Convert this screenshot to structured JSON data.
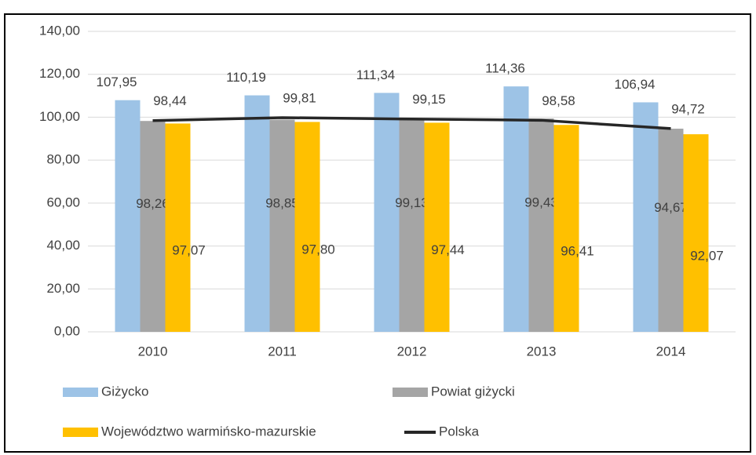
{
  "chart_data": {
    "type": "bar",
    "categories": [
      "2010",
      "2011",
      "2012",
      "2013",
      "2014"
    ],
    "series": [
      {
        "name": "Giżycko",
        "color": "#9dc3e6",
        "type": "bar",
        "values": [
          107.95,
          110.19,
          111.34,
          114.36,
          106.94
        ],
        "value_labels": [
          "107,95",
          "110,19",
          "111,34",
          "114,36",
          "106,94"
        ]
      },
      {
        "name": "Powiat giżycki",
        "color": "#a5a5a5",
        "type": "bar",
        "values": [
          98.26,
          98.85,
          99.13,
          99.43,
          94.67
        ],
        "value_labels": [
          "98,26",
          "98,85",
          "99,13",
          "99,43",
          "94,67"
        ]
      },
      {
        "name": "Województwo warmińsko-mazurskie",
        "color": "#ffc000",
        "type": "bar",
        "values": [
          97.07,
          97.8,
          97.44,
          96.41,
          92.07
        ],
        "value_labels": [
          "97,07",
          "97,80",
          "97,44",
          "96,41",
          "92,07"
        ]
      },
      {
        "name": "Polska",
        "color": "#262626",
        "type": "line",
        "values": [
          98.44,
          99.81,
          99.15,
          98.58,
          94.72
        ],
        "value_labels": [
          "98,44",
          "99,81",
          "99,15",
          "98,58",
          "94,72"
        ]
      }
    ],
    "ylim": [
      0,
      140
    ],
    "yticks": [
      {
        "value": 0,
        "label": "0,00"
      },
      {
        "value": 20,
        "label": "20,00"
      },
      {
        "value": 40,
        "label": "40,00"
      },
      {
        "value": 60,
        "label": "60,00"
      },
      {
        "value": 80,
        "label": "80,00"
      },
      {
        "value": 100,
        "label": "100,00"
      },
      {
        "value": 120,
        "label": "120,00"
      },
      {
        "value": 140,
        "label": "140,00"
      }
    ],
    "grid": true
  }
}
